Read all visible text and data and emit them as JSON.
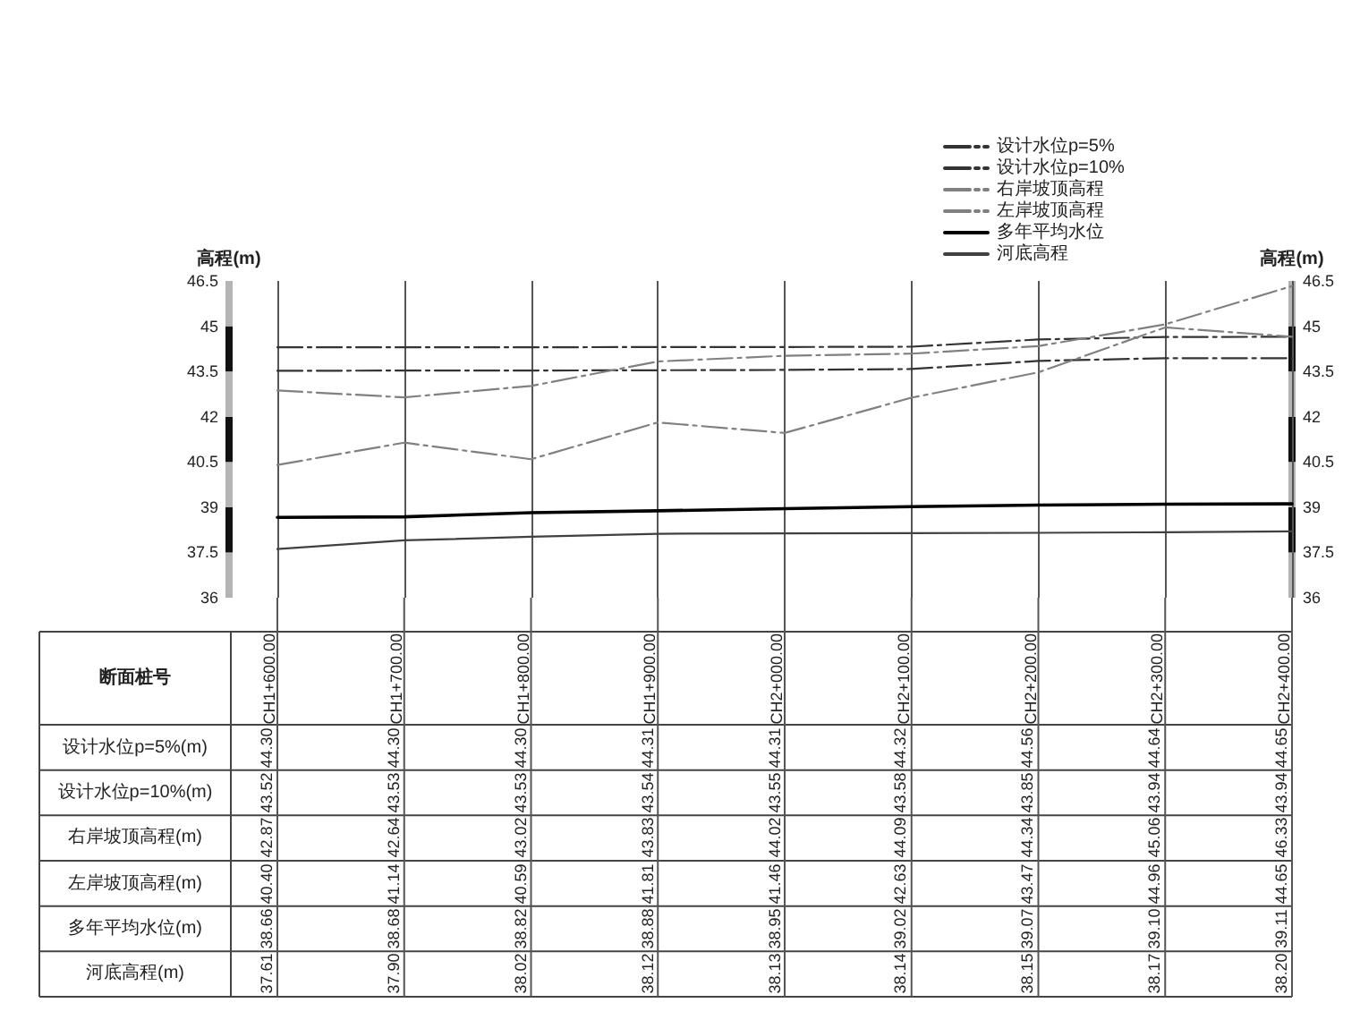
{
  "chart_data": {
    "type": "line",
    "xlabel": "断面桩号",
    "ylabel": "高程(m)",
    "y2label": "高程(m)",
    "categories": [
      "CH1+600.00",
      "CH1+700.00",
      "CH1+800.00",
      "CH1+900.00",
      "CH2+000.00",
      "CH2+100.00",
      "CH2+200.00",
      "CH2+300.00",
      "CH2+400.00"
    ],
    "series": [
      {
        "name": "设计水位p=5%",
        "color": "#333333",
        "line_style": "dashed",
        "values": [
          44.3,
          44.3,
          44.3,
          44.31,
          44.31,
          44.32,
          44.56,
          44.64,
          44.65
        ],
        "value_labels": [
          "44.30",
          "44.30",
          "44.30",
          "44.31",
          "44.31",
          "44.32",
          "44.56",
          "44.64",
          "44.65"
        ]
      },
      {
        "name": "设计水位p=10%",
        "color": "#333333",
        "line_style": "dashed",
        "values": [
          43.52,
          43.53,
          43.53,
          43.54,
          43.55,
          43.58,
          43.85,
          43.94,
          43.94
        ],
        "value_labels": [
          "43.52",
          "43.53",
          "43.53",
          "43.54",
          "43.55",
          "43.58",
          "43.85",
          "43.94",
          "43.94"
        ]
      },
      {
        "name": "右岸坡顶高程",
        "color": "#808080",
        "line_style": "dashed",
        "values": [
          42.87,
          42.64,
          43.02,
          43.83,
          44.02,
          44.09,
          44.34,
          45.06,
          46.33
        ],
        "value_labels": [
          "42.87",
          "42.64",
          "43.02",
          "43.83",
          "44.02",
          "44.09",
          "44.34",
          "45.06",
          "46.33"
        ]
      },
      {
        "name": "左岸坡顶高程",
        "color": "#808080",
        "line_style": "dashed",
        "values": [
          40.4,
          41.14,
          40.59,
          41.81,
          41.46,
          42.63,
          43.47,
          44.96,
          44.65
        ],
        "value_labels": [
          "40.40",
          "41.14",
          "40.59",
          "41.81",
          "41.46",
          "42.63",
          "43.47",
          "44.96",
          "44.65"
        ]
      },
      {
        "name": "多年平均水位",
        "color": "#000000",
        "line_style": "solid",
        "values": [
          38.66,
          38.68,
          38.82,
          38.88,
          38.95,
          39.02,
          39.07,
          39.1,
          39.11
        ],
        "value_labels": [
          "38.66",
          "38.68",
          "38.82",
          "38.88",
          "38.95",
          "39.02",
          "39.07",
          "39.10",
          "39.11"
        ]
      },
      {
        "name": "河底高程",
        "color": "#404040",
        "line_style": "solid",
        "values": [
          37.61,
          37.9,
          38.02,
          38.12,
          38.13,
          38.14,
          38.15,
          38.17,
          38.2
        ],
        "value_labels": [
          "37.61",
          "37.90",
          "38.02",
          "38.12",
          "38.13",
          "38.14",
          "38.15",
          "38.17",
          "38.20"
        ]
      }
    ],
    "annotations": [
      "设计水位p=5%(m)",
      "设计水位p=10%(m)",
      "右岸坡顶高程(m)",
      "左岸坡顶高程(m)",
      "多年平均水位(m)",
      "河底高程(m)"
    ],
    "ylim": [
      36,
      46.5
    ],
    "yticks": [
      36,
      37.5,
      39,
      40.5,
      42,
      43.5,
      45,
      46.5
    ],
    "y2lim": [
      36,
      46.5
    ],
    "y2ticks": [
      36,
      37.5,
      39,
      40.5,
      42,
      43.5,
      45,
      46.5
    ],
    "grid": "x",
    "legend": "top right",
    "marker": "none"
  }
}
